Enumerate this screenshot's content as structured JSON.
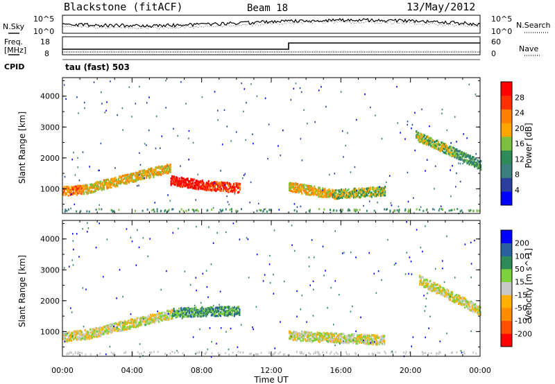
{
  "header": {
    "station": "Blackstone (fitACF)",
    "beam": "Beam 18",
    "date": "13/May/2012"
  },
  "noise_panel": {
    "left_label": "N.Sky",
    "right_label": "N.Search",
    "left_ticks": [
      "10^5",
      "10^0"
    ],
    "right_ticks": [
      "10^5",
      "10^0"
    ]
  },
  "freq_panel": {
    "left_label_line1": "Freq.",
    "left_label_line2": "[MHz]",
    "left_ticks": [
      "18",
      "8"
    ],
    "right_label": "Nave",
    "right_ticks": [
      "60",
      "0"
    ],
    "cpid_label": "CPID",
    "cpid_value": "tau (fast) 503"
  },
  "chart_data": [
    {
      "type": "heatmap",
      "name": "power",
      "ylabel": "Slant Range [km]",
      "yticks": [
        "4000",
        "3000",
        "2000",
        "1000"
      ],
      "ylim": [
        200,
        4600
      ],
      "xlim": [
        0,
        24
      ],
      "colorbar_label": "Power [dB]",
      "colorbar_ticks": [
        "28",
        "24",
        "20",
        "16",
        "12",
        "8",
        "4"
      ],
      "colors": [
        "#0000ff",
        "#2a3f9e",
        "#3d7f7f",
        "#2e8b57",
        "#7fbf3f",
        "#ffa500",
        "#ff7f00",
        "#ff3000",
        "#ff0000"
      ],
      "bands": [
        {
          "start_h": 0.0,
          "end_h": 1.2,
          "r0": 950,
          "r1": 1000,
          "level": 6
        },
        {
          "start_h": 1.2,
          "end_h": 4.0,
          "r0": 1000,
          "r1": 1400,
          "level": 5
        },
        {
          "start_h": 4.0,
          "end_h": 6.2,
          "r0": 1400,
          "r1": 1700,
          "level": 5
        },
        {
          "start_h": 6.2,
          "end_h": 8.0,
          "r0": 1300,
          "r1": 1150,
          "level": 8
        },
        {
          "start_h": 8.0,
          "end_h": 10.2,
          "r0": 1150,
          "r1": 1050,
          "level": 7
        },
        {
          "start_h": 13.0,
          "end_h": 15.5,
          "r0": 1100,
          "r1": 850,
          "level": 5
        },
        {
          "start_h": 15.5,
          "end_h": 18.5,
          "r0": 850,
          "r1": 950,
          "level": 4
        },
        {
          "start_h": 20.3,
          "end_h": 22.5,
          "r0": 2750,
          "r1": 2200,
          "level": 4
        },
        {
          "start_h": 22.5,
          "end_h": 24.0,
          "r0": 2200,
          "r1": 1800,
          "level": 3
        }
      ]
    },
    {
      "type": "heatmap",
      "name": "velocity",
      "ylabel": "Slant Range [km]",
      "yticks": [
        "4000",
        "3000",
        "2000",
        "1000"
      ],
      "ylim": [
        200,
        4600
      ],
      "xlim": [
        0,
        24
      ],
      "xlabel": "Time UT",
      "xticks": [
        "00:00",
        "04:00",
        "08:00",
        "12:00",
        "16:00",
        "20:00",
        "00:00"
      ],
      "colorbar_label": "Velocity [m s^-1]",
      "colorbar_ticks": [
        "200",
        "100",
        "50",
        "15",
        "-15",
        "-50",
        "-100",
        "-200"
      ],
      "colors": [
        "#ff0000",
        "#ff5000",
        "#ff8c00",
        "#ffb000",
        "#c8c8c8",
        "#7fd03f",
        "#2e8b57",
        "#2a5fa0",
        "#0000ff"
      ],
      "bands": [
        {
          "start_h": 0.0,
          "end_h": 1.5,
          "r0": 850,
          "r1": 950,
          "level": 4
        },
        {
          "start_h": 1.5,
          "end_h": 4.0,
          "r0": 950,
          "r1": 1300,
          "level": 4
        },
        {
          "start_h": 4.0,
          "end_h": 6.3,
          "r0": 1300,
          "r1": 1600,
          "level": 4
        },
        {
          "start_h": 6.3,
          "end_h": 10.2,
          "r0": 1650,
          "r1": 1700,
          "level": 6
        },
        {
          "start_h": 13.0,
          "end_h": 18.5,
          "r0": 900,
          "r1": 750,
          "level": 4
        },
        {
          "start_h": 20.5,
          "end_h": 24.0,
          "r0": 2700,
          "r1": 1700,
          "level": 4
        }
      ]
    }
  ]
}
